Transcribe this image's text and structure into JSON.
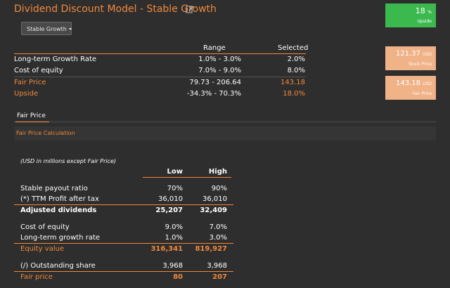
{
  "header": {
    "title": "Dividend Discount Model - Stable Growth",
    "dropdown_label": "Stable Growth"
  },
  "range_table": {
    "col_range": "Range",
    "col_selected": "Selected",
    "rows": [
      {
        "label": "Long-term Growth Rate",
        "range": "1.0% - 3.0%",
        "selected": "2.0%"
      },
      {
        "label": "Cost of equity",
        "range": "7.0% - 9.0%",
        "selected": "8.0%"
      },
      {
        "label": "Fair Price",
        "range": "79.73 - 206.64",
        "selected": "143.18"
      },
      {
        "label": "Upside",
        "range": "-34.3% - 70.3%",
        "selected": "18.0%"
      }
    ]
  },
  "cards": {
    "upside": {
      "value": "18",
      "unit": "%",
      "label": "Upside"
    },
    "stock_price": {
      "value": "121.37",
      "unit": "USD",
      "label": "Stock Price"
    },
    "fair_price": {
      "value": "143.18",
      "unit": "USD",
      "label": "Fair Price"
    }
  },
  "tabs": {
    "fair_price": "Fair Price"
  },
  "section": {
    "title": "Fair Price Calculation"
  },
  "calc": {
    "note": "(USD in millions except Fair Price)",
    "col_low": "Low",
    "col_high": "High",
    "rows": [
      {
        "label": "Stable payout ratio",
        "low": "70%",
        "high": "90%"
      },
      {
        "label": "(*) TTM Profit after tax",
        "low": "36,010",
        "high": "36,010"
      },
      {
        "label": "Adjusted dividends",
        "low": "25,207",
        "high": "32,409"
      },
      {
        "label": "Cost of equity",
        "low": "9.0%",
        "high": "7.0%"
      },
      {
        "label": "Long-term growth rate",
        "low": "1.0%",
        "high": "3.0%"
      },
      {
        "label": "Equity value",
        "low": "316,341",
        "high": "819,927"
      },
      {
        "label": "(/) Outstanding share",
        "low": "3,968",
        "high": "3,968"
      },
      {
        "label": "Fair price",
        "low": "80",
        "high": "207"
      }
    ]
  },
  "colors": {
    "accent": "#f0883a",
    "green": "#3cb94e",
    "tan": "#f0b287",
    "background": "#2e2e2e"
  }
}
